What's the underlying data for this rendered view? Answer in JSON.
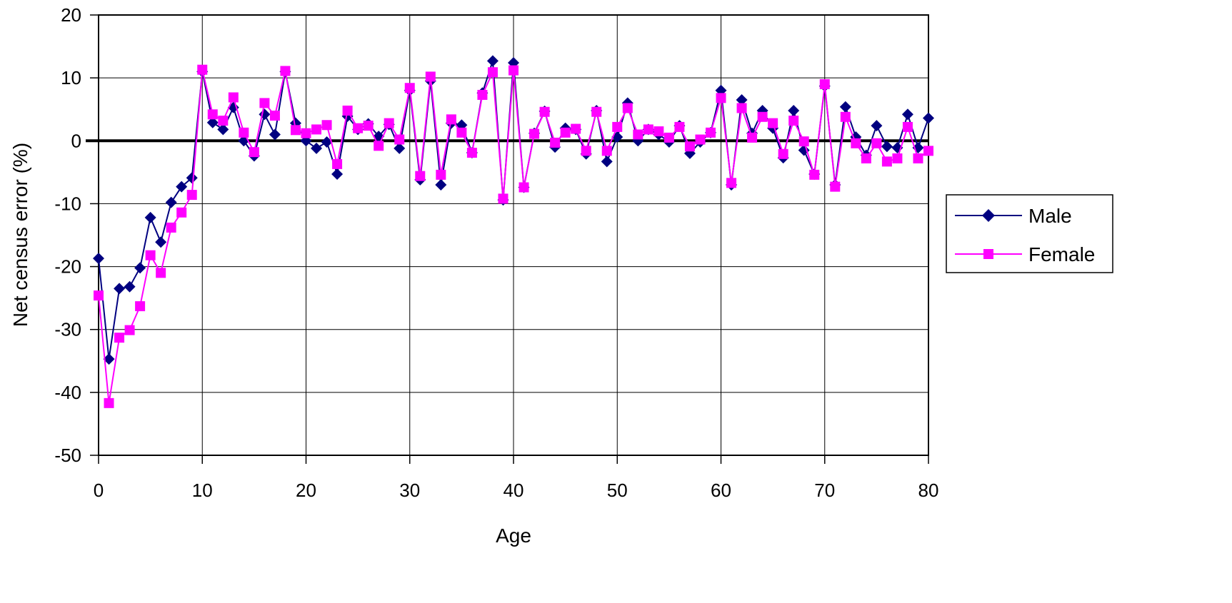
{
  "chart_data": {
    "type": "line",
    "title": "",
    "xlabel": "Age",
    "ylabel": "Net census error (%)",
    "xlim": [
      0,
      80
    ],
    "ylim": [
      -50,
      20
    ],
    "x_ticks": [
      0,
      10,
      20,
      30,
      40,
      50,
      60,
      70,
      80
    ],
    "y_ticks": [
      20,
      10,
      0,
      -10,
      -20,
      -30,
      -40,
      -50
    ],
    "grid": true,
    "legend_position": "right",
    "x": [
      0,
      1,
      2,
      3,
      4,
      5,
      6,
      7,
      8,
      9,
      10,
      11,
      12,
      13,
      14,
      15,
      16,
      17,
      18,
      19,
      20,
      21,
      22,
      23,
      24,
      25,
      26,
      27,
      28,
      29,
      30,
      31,
      32,
      33,
      34,
      35,
      36,
      37,
      38,
      39,
      40,
      41,
      42,
      43,
      44,
      45,
      46,
      47,
      48,
      49,
      50,
      51,
      52,
      53,
      54,
      55,
      56,
      57,
      58,
      59,
      60,
      61,
      62,
      63,
      64,
      65,
      66,
      67,
      68,
      69,
      70,
      71,
      72,
      73,
      74,
      75,
      76,
      77,
      78,
      79,
      80
    ],
    "series": [
      {
        "name": "Male",
        "color": "#000080",
        "marker": "diamond",
        "values": [
          -18.7,
          -34.7,
          -23.5,
          -23.2,
          -20.2,
          -12.2,
          -16.1,
          -9.8,
          -7.3,
          -5.9,
          11.0,
          2.9,
          1.8,
          5.3,
          0.0,
          -2.4,
          4.2,
          1.0,
          11.0,
          2.8,
          0.0,
          -1.2,
          -0.2,
          -5.3,
          3.9,
          1.8,
          2.7,
          0.7,
          2.6,
          -1.2,
          8.0,
          -6.2,
          9.5,
          -7.0,
          2.8,
          2.5,
          -1.9,
          7.6,
          12.7,
          -9.4,
          12.4,
          -7.4,
          1.2,
          4.7,
          -1.0,
          2.0,
          1.8,
          -2.1,
          4.8,
          -3.3,
          0.6,
          6.0,
          0.0,
          1.8,
          1.0,
          -0.2,
          2.4,
          -2.0,
          -0.2,
          1.3,
          8.0,
          -7.0,
          6.5,
          1.2,
          4.8,
          2.0,
          -2.7,
          4.8,
          -1.5,
          -5.3,
          8.7,
          -7.0,
          5.4,
          0.6,
          -2.3,
          2.4,
          -0.9,
          -1.1,
          4.2,
          -1.1,
          3.6
        ]
      },
      {
        "name": "Female",
        "color": "#FF00FF",
        "marker": "square",
        "values": [
          -24.6,
          -41.7,
          -31.3,
          -30.1,
          -26.3,
          -18.2,
          -21.0,
          -13.8,
          -11.4,
          -8.6,
          11.3,
          4.2,
          3.2,
          6.9,
          1.3,
          -1.8,
          6.0,
          4.0,
          11.1,
          1.7,
          1.2,
          1.8,
          2.5,
          -3.7,
          4.8,
          2.0,
          2.4,
          -0.8,
          2.8,
          0.2,
          8.4,
          -5.6,
          10.2,
          -5.4,
          3.4,
          1.3,
          -1.9,
          7.3,
          10.9,
          -9.2,
          11.2,
          -7.4,
          1.1,
          4.6,
          -0.3,
          1.3,
          1.9,
          -1.6,
          4.6,
          -1.6,
          2.2,
          5.2,
          1.0,
          1.8,
          1.5,
          0.5,
          2.2,
          -0.9,
          0.2,
          1.3,
          6.8,
          -6.7,
          5.2,
          0.5,
          3.8,
          2.8,
          -2.1,
          3.2,
          -0.1,
          -5.4,
          9.0,
          -7.3,
          3.8,
          -0.4,
          -2.8,
          -0.4,
          -3.3,
          -2.8,
          2.2,
          -2.8,
          -1.6
        ]
      }
    ]
  }
}
